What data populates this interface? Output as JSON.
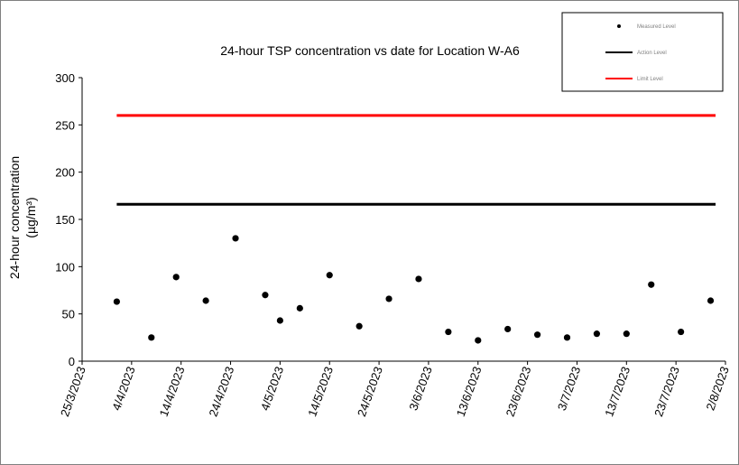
{
  "chart_data": {
    "type": "scatter",
    "title": "24-hour TSP concentration vs date for Location W-A6",
    "ylabel_line1": "24-hour concentration",
    "ylabel_line2": "(µg/m³)",
    "xlabel": "",
    "ylim": [
      0,
      300
    ],
    "yticks": [
      0,
      50,
      100,
      150,
      200,
      250,
      300
    ],
    "xlim": [
      "2023-03-25",
      "2023-08-02"
    ],
    "xtick_labels": [
      "25/3/2023",
      "4/4/2023",
      "14/4/2023",
      "24/4/2023",
      "4/5/2023",
      "14/5/2023",
      "24/5/2023",
      "3/6/2023",
      "13/6/2023",
      "23/6/2023",
      "3/7/2023",
      "13/7/2023",
      "23/7/2023",
      "2/8/2023"
    ],
    "xtick_dates": [
      "2023-03-25",
      "2023-04-04",
      "2023-04-14",
      "2023-04-24",
      "2023-05-04",
      "2023-05-14",
      "2023-05-24",
      "2023-06-03",
      "2023-06-13",
      "2023-06-23",
      "2023-07-03",
      "2023-07-13",
      "2023-07-23",
      "2023-08-02"
    ],
    "grid": false,
    "legend_position": "top-right",
    "series": [
      {
        "name": "Measured Level",
        "kind": "scatter",
        "color": "#000000",
        "x": [
          "2023-04-01",
          "2023-04-08",
          "2023-04-13",
          "2023-04-19",
          "2023-04-25",
          "2023-05-01",
          "2023-05-04",
          "2023-05-08",
          "2023-05-14",
          "2023-05-20",
          "2023-05-26",
          "2023-06-01",
          "2023-06-07",
          "2023-06-13",
          "2023-06-19",
          "2023-06-25",
          "2023-07-01",
          "2023-07-07",
          "2023-07-13",
          "2023-07-18",
          "2023-07-24",
          "2023-07-30"
        ],
        "y": [
          63,
          25,
          89,
          64,
          130,
          70,
          43,
          56,
          91,
          37,
          66,
          87,
          31,
          22,
          34,
          28,
          25,
          29,
          29,
          81,
          31,
          64
        ]
      },
      {
        "name": "Action Level",
        "kind": "line",
        "color": "#000000",
        "x": [
          "2023-04-01",
          "2023-07-31"
        ],
        "y": [
          166,
          166
        ]
      },
      {
        "name": "Limit Level",
        "kind": "line",
        "color": "#ff0000",
        "x": [
          "2023-04-01",
          "2023-07-31"
        ],
        "y": [
          260,
          260
        ]
      }
    ]
  }
}
